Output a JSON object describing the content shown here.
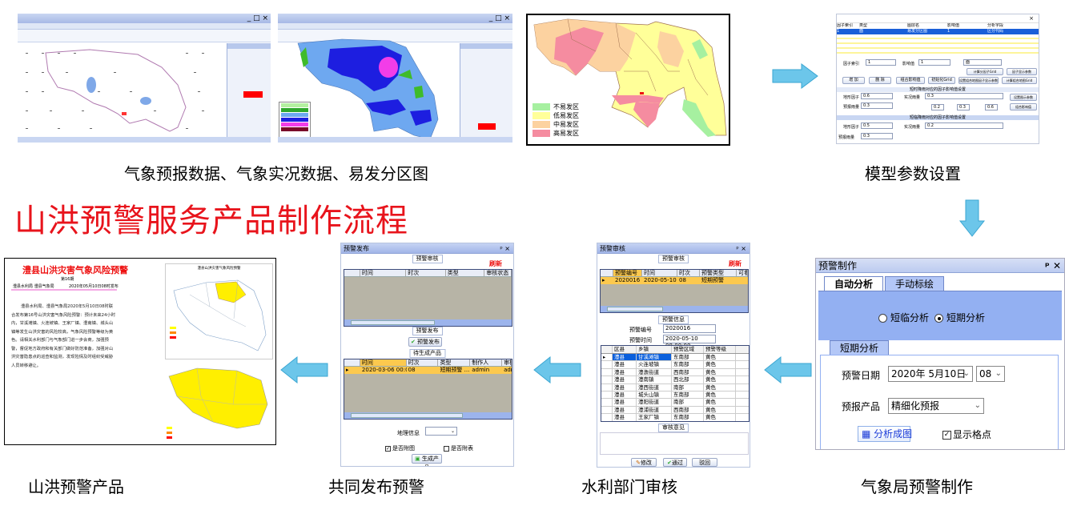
{
  "title": "山洪预警服务产品制作流程",
  "captions": {
    "inputs": "气象预报数据、气象实况数据、易发分区图",
    "model": "模型参数设置",
    "product": "山洪预警产品",
    "publish": "共同发布预警",
    "audit": "水利部门审核",
    "warn_make": "气象局预警制作"
  },
  "arrow_color": "#6cc6ea",
  "title_color": "#e8141c",
  "susceptibility_map": {
    "legend": [
      {
        "label": "不易发区",
        "color": "#a6f0a0"
      },
      {
        "label": "低易发区",
        "color": "#ffff99"
      },
      {
        "label": "中易发区",
        "color": "#fcd2a0"
      },
      {
        "label": "高易发区",
        "color": "#f58ca0"
      }
    ]
  },
  "model_params": {
    "columns": [
      "因子索引",
      "类型",
      "图层名",
      "影响值",
      "分析字段"
    ],
    "selected_row": [
      "1",
      "面",
      "易发分区图",
      "1",
      "区分代码"
    ],
    "labels": {
      "factor_index": "因子索引",
      "impact": "影响值",
      "factor_index_value": "1",
      "impact_value": "1",
      "type_value": "面"
    },
    "buttons": [
      "增 加",
      "删 除",
      "组合影响值",
      "初始化Grid",
      "设置组合地图因子显示参数",
      "计算组合地图Grid",
      "计算分因子Grid",
      "因子显示参数",
      "设置图示参数",
      "组合影响值"
    ],
    "section_short": "短时降雨对应的因子影响值设置",
    "section_long": "短临降雨对应的因子影响值设置",
    "fields": {
      "terrain": "地形因子",
      "observed": "实况雨量",
      "forecast": "预报雨量",
      "terrain_v": "0.6",
      "observed_v": "0.3",
      "forecast_v": "0.3",
      "terrain_v2": "0.5",
      "observed_v2": "0.2",
      "forecast_v2": "0.3",
      "r1": "0.2",
      "r2": "0.3",
      "r3": "0.6"
    }
  },
  "warn_make": {
    "panel_title": "预警制作",
    "tabs": [
      "自动分析",
      "手动标绘"
    ],
    "radios": [
      {
        "label": "短临分析",
        "checked": false
      },
      {
        "label": "短期分析",
        "checked": true
      }
    ],
    "sub_tab": "短期分析",
    "date_label": "预警日期",
    "date_value": "2020年 5月10日",
    "hour_value": "08",
    "product_label": "预报产品",
    "product_value": "精细化预报",
    "analyze_button": "分析成图",
    "show_grid_label": "显示格点",
    "show_grid_checked": true
  },
  "audit": {
    "panel_title": "预警审核",
    "group_audit": "预警审核",
    "refresh": "刷新",
    "columns": [
      "预警编号",
      "时间",
      "时次",
      "预警类型",
      "可看"
    ],
    "row": [
      "2020016",
      "2020-05-10",
      "08",
      "短期预警"
    ],
    "group_info": "预警信息",
    "id_label": "预警编号",
    "id_value": "2020016",
    "time_label": "预警时间",
    "time_value": "2020-05-10 08:00:00",
    "area_columns": [
      "区县",
      "乡镇",
      "预警区域",
      "预警等级"
    ],
    "areas": [
      [
        "澧县",
        "甘溪滩镇",
        "东南部",
        "黄色"
      ],
      [
        "澧县",
        "火连坡镇",
        "东南部",
        "黄色"
      ],
      [
        "澧县",
        "澧澹街道",
        "西南部",
        "黄色"
      ],
      [
        "澧县",
        "澧南镇",
        "西北部",
        "黄色"
      ],
      [
        "澧县",
        "澧西街道",
        "南部",
        "黄色"
      ],
      [
        "澧县",
        "城头山镇",
        "东南部",
        "黄色"
      ],
      [
        "澧县",
        "澧阳街道",
        "南部",
        "黄色"
      ],
      [
        "澧县",
        "澧浦街道",
        "西南部",
        "黄色"
      ],
      [
        "澧县",
        "王家厂镇",
        "东南部",
        "黄色"
      ]
    ],
    "group_opinion": "审核意见",
    "buttons": [
      "修改",
      "通过",
      "驳回"
    ]
  },
  "publish": {
    "panel_title": "预警发布",
    "group_audit": "预警审核",
    "refresh": "刷新",
    "columns": [
      "时间",
      "时次",
      "类型",
      "审核状态"
    ],
    "group_publish": "预警发布",
    "publish_button": "预警发布",
    "group_pending": "待生成产品",
    "pending_columns": [
      "时间",
      "时次",
      "类型",
      "制作人",
      "审核"
    ],
    "pending_row": [
      "2020-03-06 00:00...",
      "08",
      "短期预警 ...",
      "admin",
      "admi"
    ],
    "geo_label": "地理信息",
    "attach_map": "是否附图",
    "attach_map_checked": true,
    "attach_table": "是否附表",
    "attach_table_checked": false,
    "generate_button": "生成产品"
  },
  "product": {
    "doc_title": "澧县山洪灾害气象风险预警",
    "issue": "第16期",
    "issuer": "澧县水利局  澧县气象局",
    "date": "2020年05月10日08时发布",
    "body": "澧县水利局、澧县气象局2020年5月10日08时联合发布第16号山洪灾害气象风险预警：预计未来24小时内，甘溪滩镇、火连坡镇、王家厂镇、澧南镇、城头山镇等发生山洪灾害的风险较高，气象风险预警等级为黄色。请相关水利部门与气象部门进一步会商，加强预警，督促地方政府和有关部门做好防范准备，加强对山洪灾害隐患点的巡查和监测，发现险情及时组织受威胁人员转移避让。",
    "map_title": "澧县山洪灾害气象风险预警"
  }
}
